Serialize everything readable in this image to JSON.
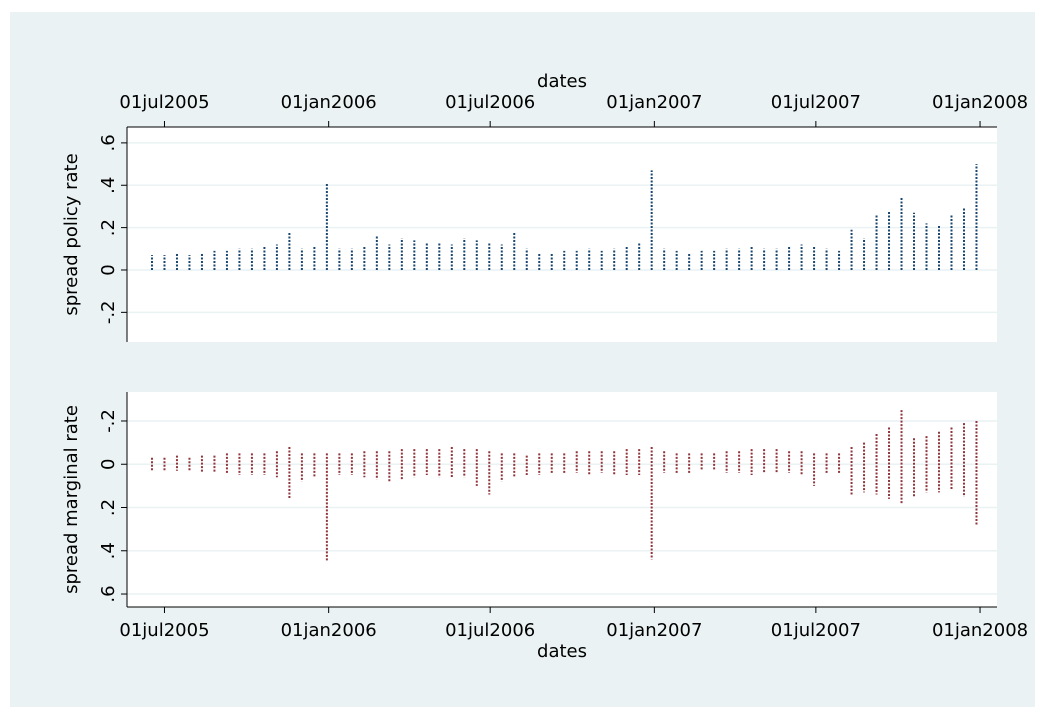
{
  "chart_data": [
    {
      "type": "rspike",
      "y_label": "spread policy rate",
      "x_label": "dates",
      "x_axis_position": "top",
      "color": "#1a476f",
      "grid": true,
      "x": [
        "2005-06-17",
        "2005-07-01",
        "2005-07-15",
        "2005-07-29",
        "2005-08-12",
        "2005-08-26",
        "2005-09-09",
        "2005-09-23",
        "2005-10-07",
        "2005-10-21",
        "2005-11-04",
        "2005-11-18",
        "2005-12-02",
        "2005-12-16",
        "2005-12-30",
        "2006-01-13",
        "2006-01-27",
        "2006-02-10",
        "2006-02-24",
        "2006-03-10",
        "2006-03-24",
        "2006-04-07",
        "2006-04-21",
        "2006-05-05",
        "2006-05-19",
        "2006-06-02",
        "2006-06-16",
        "2006-06-30",
        "2006-07-14",
        "2006-07-28",
        "2006-08-11",
        "2006-08-25",
        "2006-09-08",
        "2006-09-22",
        "2006-10-06",
        "2006-10-20",
        "2006-11-03",
        "2006-11-17",
        "2006-12-01",
        "2006-12-15",
        "2006-12-29",
        "2007-01-12",
        "2007-01-26",
        "2007-02-09",
        "2007-02-23",
        "2007-03-09",
        "2007-03-23",
        "2007-04-06",
        "2007-04-20",
        "2007-05-04",
        "2007-05-18",
        "2007-06-01",
        "2007-06-15",
        "2007-06-29",
        "2007-07-13",
        "2007-07-27",
        "2007-08-10",
        "2007-08-24",
        "2007-09-07",
        "2007-09-21",
        "2007-10-05",
        "2007-10-19",
        "2007-11-02",
        "2007-11-16",
        "2007-11-30",
        "2007-12-14",
        "2007-12-28"
      ],
      "low": [
        0,
        0,
        0,
        0,
        0,
        0,
        0,
        0,
        0,
        0,
        0,
        0,
        0,
        0,
        0,
        0,
        0,
        0,
        0,
        0,
        0,
        0,
        0,
        0,
        0,
        0,
        0,
        0,
        0,
        0,
        0,
        0,
        0,
        0,
        0,
        0,
        0,
        0,
        0,
        0,
        0,
        0,
        0,
        0,
        0,
        0,
        0,
        0,
        0,
        0,
        0,
        0,
        0,
        0,
        0,
        0,
        0,
        0,
        0,
        0,
        0,
        0,
        0,
        0,
        0,
        0,
        0
      ],
      "high": [
        0.07,
        0.07,
        0.08,
        0.07,
        0.08,
        0.09,
        0.09,
        0.1,
        0.1,
        0.11,
        0.12,
        0.18,
        0.1,
        0.11,
        0.41,
        0.1,
        0.1,
        0.11,
        0.16,
        0.12,
        0.15,
        0.14,
        0.13,
        0.13,
        0.12,
        0.15,
        0.14,
        0.13,
        0.12,
        0.18,
        0.1,
        0.08,
        0.08,
        0.09,
        0.09,
        0.1,
        0.09,
        0.1,
        0.11,
        0.13,
        0.47,
        0.1,
        0.09,
        0.08,
        0.09,
        0.09,
        0.1,
        0.1,
        0.11,
        0.1,
        0.1,
        0.11,
        0.12,
        0.11,
        0.1,
        0.09,
        0.19,
        0.15,
        0.26,
        0.28,
        0.34,
        0.27,
        0.22,
        0.21,
        0.26,
        0.29,
        0.5
      ],
      "xlim": [
        "2005-05-20",
        "2008-01-20"
      ],
      "xticks": [
        {
          "value": "2005-07-01",
          "label": "01jul2005"
        },
        {
          "value": "2006-01-01",
          "label": "01jan2006"
        },
        {
          "value": "2006-07-01",
          "label": "01jul2006"
        },
        {
          "value": "2007-01-01",
          "label": "01jan2007"
        },
        {
          "value": "2007-07-01",
          "label": "01jul2007"
        },
        {
          "value": "2008-01-01",
          "label": "01jan2008"
        }
      ],
      "ylim": [
        -0.34,
        0.675
      ],
      "yticks": [
        {
          "value": -0.2,
          "label": "-.2"
        },
        0,
        {
          "value": 0.2,
          "label": ".2"
        },
        {
          "value": 0.4,
          "label": ".4"
        },
        {
          "value": 0.6,
          "label": ".6"
        }
      ]
    },
    {
      "type": "rspike",
      "y_label": "spread marginal rate",
      "x_label": "dates",
      "x_axis_position": "bottom",
      "color": "#90353b",
      "grid": true,
      "x": [
        "2005-06-17",
        "2005-07-01",
        "2005-07-15",
        "2005-07-29",
        "2005-08-12",
        "2005-08-26",
        "2005-09-09",
        "2005-09-23",
        "2005-10-07",
        "2005-10-21",
        "2005-11-04",
        "2005-11-18",
        "2005-12-02",
        "2005-12-16",
        "2005-12-30",
        "2006-01-13",
        "2006-01-27",
        "2006-02-10",
        "2006-02-24",
        "2006-03-10",
        "2006-03-24",
        "2006-04-07",
        "2006-04-21",
        "2006-05-05",
        "2006-05-19",
        "2006-06-02",
        "2006-06-16",
        "2006-06-30",
        "2006-07-14",
        "2006-07-28",
        "2006-08-11",
        "2006-08-25",
        "2006-09-08",
        "2006-09-22",
        "2006-10-06",
        "2006-10-20",
        "2006-11-03",
        "2006-11-17",
        "2006-12-01",
        "2006-12-15",
        "2006-12-29",
        "2007-01-12",
        "2007-01-26",
        "2007-02-09",
        "2007-02-23",
        "2007-03-09",
        "2007-03-23",
        "2007-04-06",
        "2007-04-20",
        "2007-05-04",
        "2007-05-18",
        "2007-06-01",
        "2007-06-15",
        "2007-06-29",
        "2007-07-13",
        "2007-07-27",
        "2007-08-10",
        "2007-08-24",
        "2007-09-07",
        "2007-09-21",
        "2007-10-05",
        "2007-10-19",
        "2007-11-02",
        "2007-11-16",
        "2007-11-30",
        "2007-12-14",
        "2007-12-28"
      ],
      "low": [
        -0.03,
        -0.03,
        -0.04,
        -0.03,
        -0.04,
        -0.04,
        -0.05,
        -0.05,
        -0.05,
        -0.05,
        -0.06,
        -0.08,
        -0.05,
        -0.05,
        -0.05,
        -0.05,
        -0.05,
        -0.06,
        -0.06,
        -0.06,
        -0.07,
        -0.07,
        -0.07,
        -0.07,
        -0.08,
        -0.07,
        -0.07,
        -0.06,
        -0.05,
        -0.05,
        -0.04,
        -0.05,
        -0.05,
        -0.05,
        -0.06,
        -0.06,
        -0.06,
        -0.06,
        -0.07,
        -0.07,
        -0.08,
        -0.06,
        -0.05,
        -0.05,
        -0.05,
        -0.05,
        -0.06,
        -0.06,
        -0.07,
        -0.07,
        -0.07,
        -0.06,
        -0.06,
        -0.05,
        -0.05,
        -0.05,
        -0.08,
        -0.1,
        -0.14,
        -0.17,
        -0.25,
        -0.12,
        -0.13,
        -0.15,
        -0.17,
        -0.19,
        -0.2
      ],
      "high": [
        0.03,
        0.03,
        0.03,
        0.03,
        0.04,
        0.04,
        0.04,
        0.05,
        0.05,
        0.05,
        0.06,
        0.16,
        0.08,
        0.06,
        0.45,
        0.05,
        0.05,
        0.06,
        0.07,
        0.08,
        0.07,
        0.06,
        0.05,
        0.06,
        0.06,
        0.06,
        0.1,
        0.14,
        0.08,
        0.06,
        0.05,
        0.05,
        0.04,
        0.04,
        0.04,
        0.05,
        0.04,
        0.05,
        0.05,
        0.05,
        0.44,
        0.04,
        0.04,
        0.04,
        0.03,
        0.03,
        0.04,
        0.04,
        0.05,
        0.04,
        0.04,
        0.04,
        0.05,
        0.1,
        0.04,
        0.04,
        0.14,
        0.13,
        0.14,
        0.16,
        0.18,
        0.15,
        0.13,
        0.13,
        0.12,
        0.15,
        0.28
      ],
      "xlim": [
        "2005-05-20",
        "2008-01-20"
      ],
      "xticks": [
        {
          "value": "2005-07-01",
          "label": "01jul2005"
        },
        {
          "value": "2006-01-01",
          "label": "01jan2006"
        },
        {
          "value": "2006-07-01",
          "label": "01jul2006"
        },
        {
          "value": "2007-01-01",
          "label": "01jan2007"
        },
        {
          "value": "2007-07-01",
          "label": "01jul2007"
        },
        {
          "value": "2008-01-01",
          "label": "01jan2008"
        }
      ],
      "ylim": [
        0.66,
        -0.334
      ],
      "yticks": [
        {
          "value": -0.2,
          "label": "-.2"
        },
        0,
        {
          "value": 0.2,
          "label": ".2"
        },
        {
          "value": 0.4,
          "label": ".4"
        },
        {
          "value": 0.6,
          "label": ".6"
        }
      ]
    }
  ]
}
